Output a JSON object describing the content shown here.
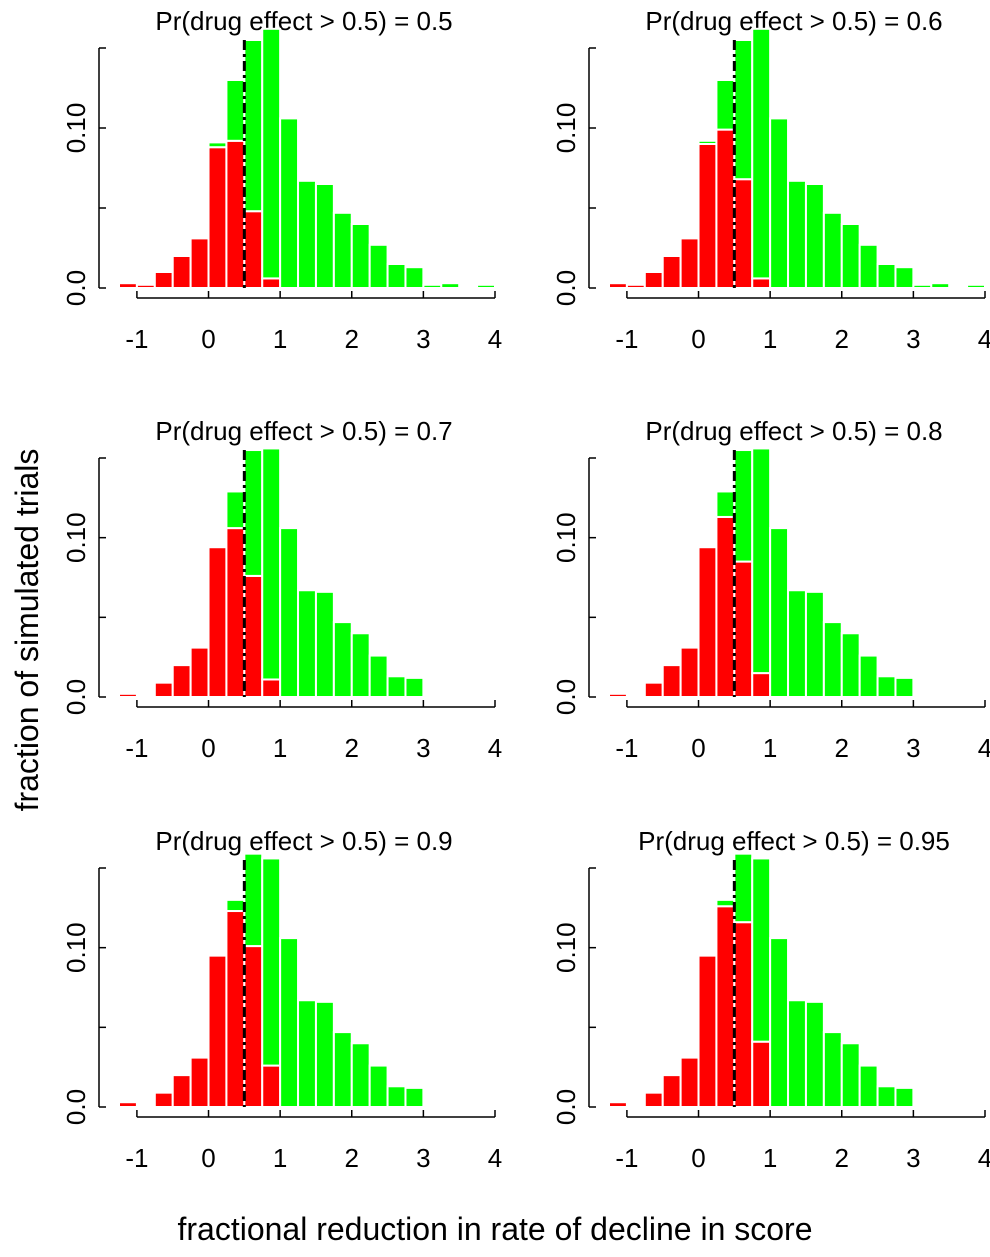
{
  "figure": {
    "xlabel": "fractional reduction in rate of decline in score",
    "ylabel": "fraction of simulated trials"
  },
  "colors": {
    "red": "#ff0000",
    "green": "#00ff00",
    "bar_edge": "#ffffff",
    "threshold_line": "#000000"
  },
  "chart_data": [
    {
      "type": "bar",
      "title": "Pr(drug effect > 0.5) = 0.5",
      "xlim": [
        -1.25,
        4.0
      ],
      "ylim": [
        0,
        0.15
      ],
      "x_ticks": [
        -1,
        0,
        1,
        2,
        3,
        4
      ],
      "x_tick_labels": [
        "-1",
        "0",
        "1",
        "2",
        "3",
        "4"
      ],
      "y_ticks": [
        0,
        0.05,
        0.1,
        0.15
      ],
      "y_tick_labels": [
        "0.0",
        "",
        "0.10",
        ""
      ],
      "threshold": 0.5,
      "bin_width": 0.25,
      "x": [
        -1.125,
        -0.875,
        -0.625,
        -0.375,
        -0.125,
        0.125,
        0.375,
        0.625,
        0.875,
        1.125,
        1.375,
        1.625,
        1.875,
        2.125,
        2.375,
        2.625,
        2.875,
        3.125,
        3.375,
        3.625,
        3.875
      ],
      "series": [
        {
          "color": "red",
          "values": [
            0.003,
            0.002,
            0.01,
            0.02,
            0.031,
            0.088,
            0.092,
            0.048,
            0.006,
            0,
            0,
            0,
            0,
            0,
            0,
            0,
            0,
            0,
            0,
            0,
            0
          ]
        },
        {
          "color": "green",
          "values": [
            0,
            0,
            0,
            0,
            0,
            0.003,
            0.038,
            0.107,
            0.156,
            0.106,
            0.067,
            0.065,
            0.047,
            0.04,
            0.027,
            0.015,
            0.013,
            0.002,
            0.003,
            0,
            0.002
          ]
        }
      ]
    },
    {
      "type": "bar",
      "title": "Pr(drug effect > 0.5) = 0.6",
      "xlim": [
        -1.25,
        4.0
      ],
      "ylim": [
        0,
        0.15
      ],
      "x_ticks": [
        -1,
        0,
        1,
        2,
        3,
        4
      ],
      "x_tick_labels": [
        "-1",
        "0",
        "1",
        "2",
        "3",
        "4"
      ],
      "y_ticks": [
        0,
        0.05,
        0.1,
        0.15
      ],
      "y_tick_labels": [
        "0.0",
        "",
        "0.10",
        ""
      ],
      "threshold": 0.5,
      "bin_width": 0.25,
      "x": [
        -1.125,
        -0.875,
        -0.625,
        -0.375,
        -0.125,
        0.125,
        0.375,
        0.625,
        0.875,
        1.125,
        1.375,
        1.625,
        1.875,
        2.125,
        2.375,
        2.625,
        2.875,
        3.125,
        3.375,
        3.625,
        3.875
      ],
      "series": [
        {
          "color": "red",
          "values": [
            0.003,
            0.002,
            0.01,
            0.02,
            0.031,
            0.09,
            0.099,
            0.068,
            0.006,
            0,
            0,
            0,
            0,
            0,
            0,
            0,
            0,
            0,
            0,
            0,
            0
          ]
        },
        {
          "color": "green",
          "values": [
            0,
            0,
            0,
            0,
            0,
            0.002,
            0.031,
            0.087,
            0.156,
            0.106,
            0.067,
            0.065,
            0.047,
            0.04,
            0.027,
            0.015,
            0.013,
            0.002,
            0.003,
            0,
            0.002
          ]
        }
      ]
    },
    {
      "type": "bar",
      "title": "Pr(drug effect > 0.5) = 0.7",
      "xlim": [
        -1.25,
        4.0
      ],
      "ylim": [
        0,
        0.15
      ],
      "x_ticks": [
        -1,
        0,
        1,
        2,
        3,
        4
      ],
      "x_tick_labels": [
        "-1",
        "0",
        "1",
        "2",
        "3",
        "4"
      ],
      "y_ticks": [
        0,
        0.05,
        0.1,
        0.15
      ],
      "y_tick_labels": [
        "0.0",
        "",
        "0.10",
        ""
      ],
      "threshold": 0.5,
      "bin_width": 0.25,
      "x": [
        -1.125,
        -0.875,
        -0.625,
        -0.375,
        -0.125,
        0.125,
        0.375,
        0.625,
        0.875,
        1.125,
        1.375,
        1.625,
        1.875,
        2.125,
        2.375,
        2.625,
        2.875,
        3.125,
        3.375,
        3.625,
        3.875
      ],
      "series": [
        {
          "color": "red",
          "values": [
            0.002,
            0,
            0.009,
            0.02,
            0.031,
            0.094,
            0.106,
            0.076,
            0.011,
            0,
            0,
            0,
            0,
            0,
            0,
            0,
            0,
            0,
            0,
            0,
            0
          ]
        },
        {
          "color": "green",
          "values": [
            0,
            0,
            0,
            0,
            0,
            0,
            0.023,
            0.079,
            0.145,
            0.106,
            0.067,
            0.066,
            0.047,
            0.04,
            0.026,
            0.013,
            0.012,
            0,
            0.001,
            0,
            0
          ]
        }
      ]
    },
    {
      "type": "bar",
      "title": "Pr(drug effect > 0.5) = 0.8",
      "xlim": [
        -1.25,
        4.0
      ],
      "ylim": [
        0,
        0.15
      ],
      "x_ticks": [
        -1,
        0,
        1,
        2,
        3,
        4
      ],
      "x_tick_labels": [
        "-1",
        "0",
        "1",
        "2",
        "3",
        "4"
      ],
      "y_ticks": [
        0,
        0.05,
        0.1,
        0.15
      ],
      "y_tick_labels": [
        "0.0",
        "",
        "0.10",
        ""
      ],
      "threshold": 0.5,
      "bin_width": 0.25,
      "x": [
        -1.125,
        -0.875,
        -0.625,
        -0.375,
        -0.125,
        0.125,
        0.375,
        0.625,
        0.875,
        1.125,
        1.375,
        1.625,
        1.875,
        2.125,
        2.375,
        2.625,
        2.875,
        3.125,
        3.375,
        3.625,
        3.875
      ],
      "series": [
        {
          "color": "red",
          "values": [
            0.002,
            0,
            0.009,
            0.02,
            0.031,
            0.094,
            0.113,
            0.085,
            0.015,
            0,
            0,
            0,
            0,
            0,
            0,
            0,
            0,
            0,
            0,
            0,
            0
          ]
        },
        {
          "color": "green",
          "values": [
            0,
            0,
            0,
            0,
            0,
            0,
            0.016,
            0.07,
            0.141,
            0.106,
            0.067,
            0.066,
            0.047,
            0.04,
            0.026,
            0.013,
            0.012,
            0,
            0.001,
            0,
            0
          ]
        }
      ]
    },
    {
      "type": "bar",
      "title": "Pr(drug effect > 0.5) = 0.9",
      "xlim": [
        -1.25,
        4.0
      ],
      "ylim": [
        0,
        0.15
      ],
      "x_ticks": [
        -1,
        0,
        1,
        2,
        3,
        4
      ],
      "x_tick_labels": [
        "-1",
        "0",
        "1",
        "2",
        "3",
        "4"
      ],
      "y_ticks": [
        0,
        0.05,
        0.1,
        0.15
      ],
      "y_tick_labels": [
        "0.0",
        "",
        "0.10",
        ""
      ],
      "threshold": 0.5,
      "bin_width": 0.25,
      "x": [
        -1.125,
        -0.875,
        -0.625,
        -0.375,
        -0.125,
        0.125,
        0.375,
        0.625,
        0.875,
        1.125,
        1.375,
        1.625,
        1.875,
        2.125,
        2.375,
        2.625,
        2.875,
        3.125,
        3.375,
        3.625,
        3.875
      ],
      "series": [
        {
          "color": "red",
          "values": [
            0.003,
            0,
            0.009,
            0.02,
            0.031,
            0.095,
            0.123,
            0.101,
            0.026,
            0,
            0,
            0,
            0,
            0,
            0,
            0,
            0,
            0,
            0,
            0,
            0
          ]
        },
        {
          "color": "green",
          "values": [
            0,
            0,
            0,
            0,
            0,
            0,
            0.007,
            0.058,
            0.13,
            0.106,
            0.067,
            0.066,
            0.047,
            0.04,
            0.026,
            0.013,
            0.012,
            0,
            0.001,
            0,
            0
          ]
        }
      ]
    },
    {
      "type": "bar",
      "title": "Pr(drug effect > 0.5) = 0.95",
      "xlim": [
        -1.25,
        4.0
      ],
      "ylim": [
        0,
        0.15
      ],
      "x_ticks": [
        -1,
        0,
        1,
        2,
        3,
        4
      ],
      "x_tick_labels": [
        "-1",
        "0",
        "1",
        "2",
        "3",
        "4"
      ],
      "y_ticks": [
        0,
        0.05,
        0.1,
        0.15
      ],
      "y_tick_labels": [
        "0.0",
        "",
        "0.10",
        ""
      ],
      "threshold": 0.5,
      "bin_width": 0.25,
      "x": [
        -1.125,
        -0.875,
        -0.625,
        -0.375,
        -0.125,
        0.125,
        0.375,
        0.625,
        0.875,
        1.125,
        1.375,
        1.625,
        1.875,
        2.125,
        2.375,
        2.625,
        2.875,
        3.125,
        3.375,
        3.625,
        3.875
      ],
      "series": [
        {
          "color": "red",
          "values": [
            0.003,
            0,
            0.009,
            0.02,
            0.031,
            0.095,
            0.126,
            0.116,
            0.041,
            0,
            0,
            0,
            0,
            0,
            0,
            0,
            0,
            0,
            0,
            0,
            0
          ]
        },
        {
          "color": "green",
          "values": [
            0,
            0,
            0,
            0,
            0,
            0,
            0.004,
            0.043,
            0.115,
            0.106,
            0.067,
            0.066,
            0.047,
            0.04,
            0.026,
            0.013,
            0.012,
            0,
            0.001,
            0,
            0
          ]
        }
      ]
    }
  ]
}
